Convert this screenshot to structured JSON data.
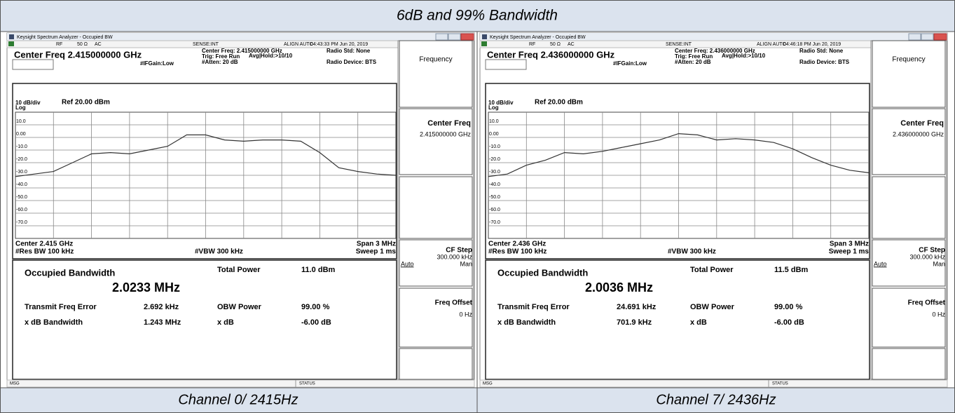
{
  "title": "6dB and 99% Bandwidth",
  "panels": [
    {
      "window_title": "Keysight Spectrum Analyzer - Occupied BW",
      "status": [
        "RF",
        "50 Ω",
        "AC",
        "SENSE:INT",
        "ALIGN AUTO",
        "04:43:33 PM Jun 20, 2019"
      ],
      "heading": "Center Freq 2.415000000 GHz",
      "info": [
        "Center Freq: 2.415000000 GHz",
        "Trig: Free Run",
        "#Atten: 20 dB",
        "Avg|Hold:>10/10",
        "#IFGain:Low",
        "Radio Std: None",
        "Radio Device: BTS"
      ],
      "chart_data": {
        "type": "line",
        "scale": "10 dB/div",
        "ref": "Ref 20.00 dBm",
        "log": "Log",
        "ylim": [
          -80,
          20
        ],
        "yticks": [
          {
            "value": 10,
            "label": "10.0"
          },
          {
            "value": 0,
            "label": "0.00"
          },
          {
            "value": -10,
            "label": "-10.0"
          },
          {
            "value": -20,
            "label": "-20.0"
          },
          {
            "value": -30,
            "label": "-30.0"
          },
          {
            "value": -40,
            "label": "-40.0"
          },
          {
            "value": -50,
            "label": "-50.0"
          },
          {
            "value": -60,
            "label": "-60.0"
          },
          {
            "value": -70,
            "label": "-70.0"
          }
        ],
        "color": "#333333",
        "values": [
          -31,
          -29,
          -27,
          -20,
          -13,
          -12,
          -13,
          -10,
          -7,
          2,
          2,
          -2,
          -3,
          -2,
          -2,
          -3,
          -12,
          -24,
          -27,
          -29,
          -30
        ]
      },
      "center": "Center 2.415 GHz",
      "span": "Span 3 MHz",
      "rbw": "#Res BW 100 kHz",
      "vbw": "#VBW 300 kHz",
      "sweep": "Sweep 1 ms",
      "obw_label": "Occupied Bandwidth",
      "obw": "2.0233 MHz",
      "total_power_label": "Total Power",
      "total_power": "11.0 dBm",
      "rows": [
        [
          "Transmit Freq Error",
          "2.692 kHz",
          "OBW Power",
          "99.00 %"
        ],
        [
          "x dB Bandwidth",
          "1.243 MHz",
          "x dB",
          "-6.00 dB"
        ]
      ],
      "softkeys": {
        "menu": "Frequency",
        "center_freq": "Center Freq",
        "center_freq_value": "2.415000000 GHz",
        "cf_step": "CF Step",
        "cf_step_value": "300.000 kHz",
        "auto": "Auto",
        "man": "Man",
        "freq_offset": "Freq Offset",
        "freq_offset_value": "0 Hz"
      },
      "msg": "MSG",
      "status_bar": "STATUS",
      "caption": "Channel 0/ 2415Hz"
    },
    {
      "window_title": "Keysight Spectrum Analyzer - Occupied BW",
      "status": [
        "RF",
        "50 Ω",
        "AC",
        "SENSE:INT",
        "ALIGN AUTO",
        "04:46:18 PM Jun 20, 2019"
      ],
      "heading": "Center Freq 2.436000000 GHz",
      "info": [
        "Center Freq: 2.436000000 GHz",
        "Trig: Free Run",
        "#Atten: 20 dB",
        "Avg|Hold:>10/10",
        "#IFGain:Low",
        "Radio Std: None",
        "Radio Device: BTS"
      ],
      "chart_data": {
        "type": "line",
        "scale": "10 dB/div",
        "ref": "Ref 20.00 dBm",
        "log": "Log",
        "ylim": [
          -80,
          20
        ],
        "yticks": [
          {
            "value": 10,
            "label": "10.0"
          },
          {
            "value": 0,
            "label": "0.00"
          },
          {
            "value": -10,
            "label": "-10.0"
          },
          {
            "value": -20,
            "label": "-20.0"
          },
          {
            "value": -30,
            "label": "-30.0"
          },
          {
            "value": -40,
            "label": "-40.0"
          },
          {
            "value": -50,
            "label": "-50.0"
          },
          {
            "value": -60,
            "label": "-60.0"
          },
          {
            "value": -70,
            "label": "-70.0"
          }
        ],
        "color": "#333333",
        "values": [
          -31,
          -29,
          -22,
          -18,
          -12,
          -13,
          -11,
          -8,
          -5,
          -2,
          3,
          2,
          -2,
          -1,
          -2,
          -4,
          -9,
          -16,
          -22,
          -26,
          -28
        ]
      },
      "center": "Center 2.436 GHz",
      "span": "Span 3 MHz",
      "rbw": "#Res BW 100 kHz",
      "vbw": "#VBW 300 kHz",
      "sweep": "Sweep 1 ms",
      "obw_label": "Occupied Bandwidth",
      "obw": "2.0036 MHz",
      "total_power_label": "Total Power",
      "total_power": "11.5 dBm",
      "rows": [
        [
          "Transmit Freq Error",
          "24.691 kHz",
          "OBW Power",
          "99.00 %"
        ],
        [
          "x dB Bandwidth",
          "701.9 kHz",
          "x dB",
          "-6.00 dB"
        ]
      ],
      "softkeys": {
        "menu": "Frequency",
        "center_freq": "Center Freq",
        "center_freq_value": "2.436000000 GHz",
        "cf_step": "CF Step",
        "cf_step_value": "300.000 kHz",
        "auto": "Auto",
        "man": "Man",
        "freq_offset": "Freq Offset",
        "freq_offset_value": "0 Hz"
      },
      "msg": "MSG",
      "status_bar": "STATUS",
      "caption": "Channel 7/ 2436Hz"
    }
  ]
}
